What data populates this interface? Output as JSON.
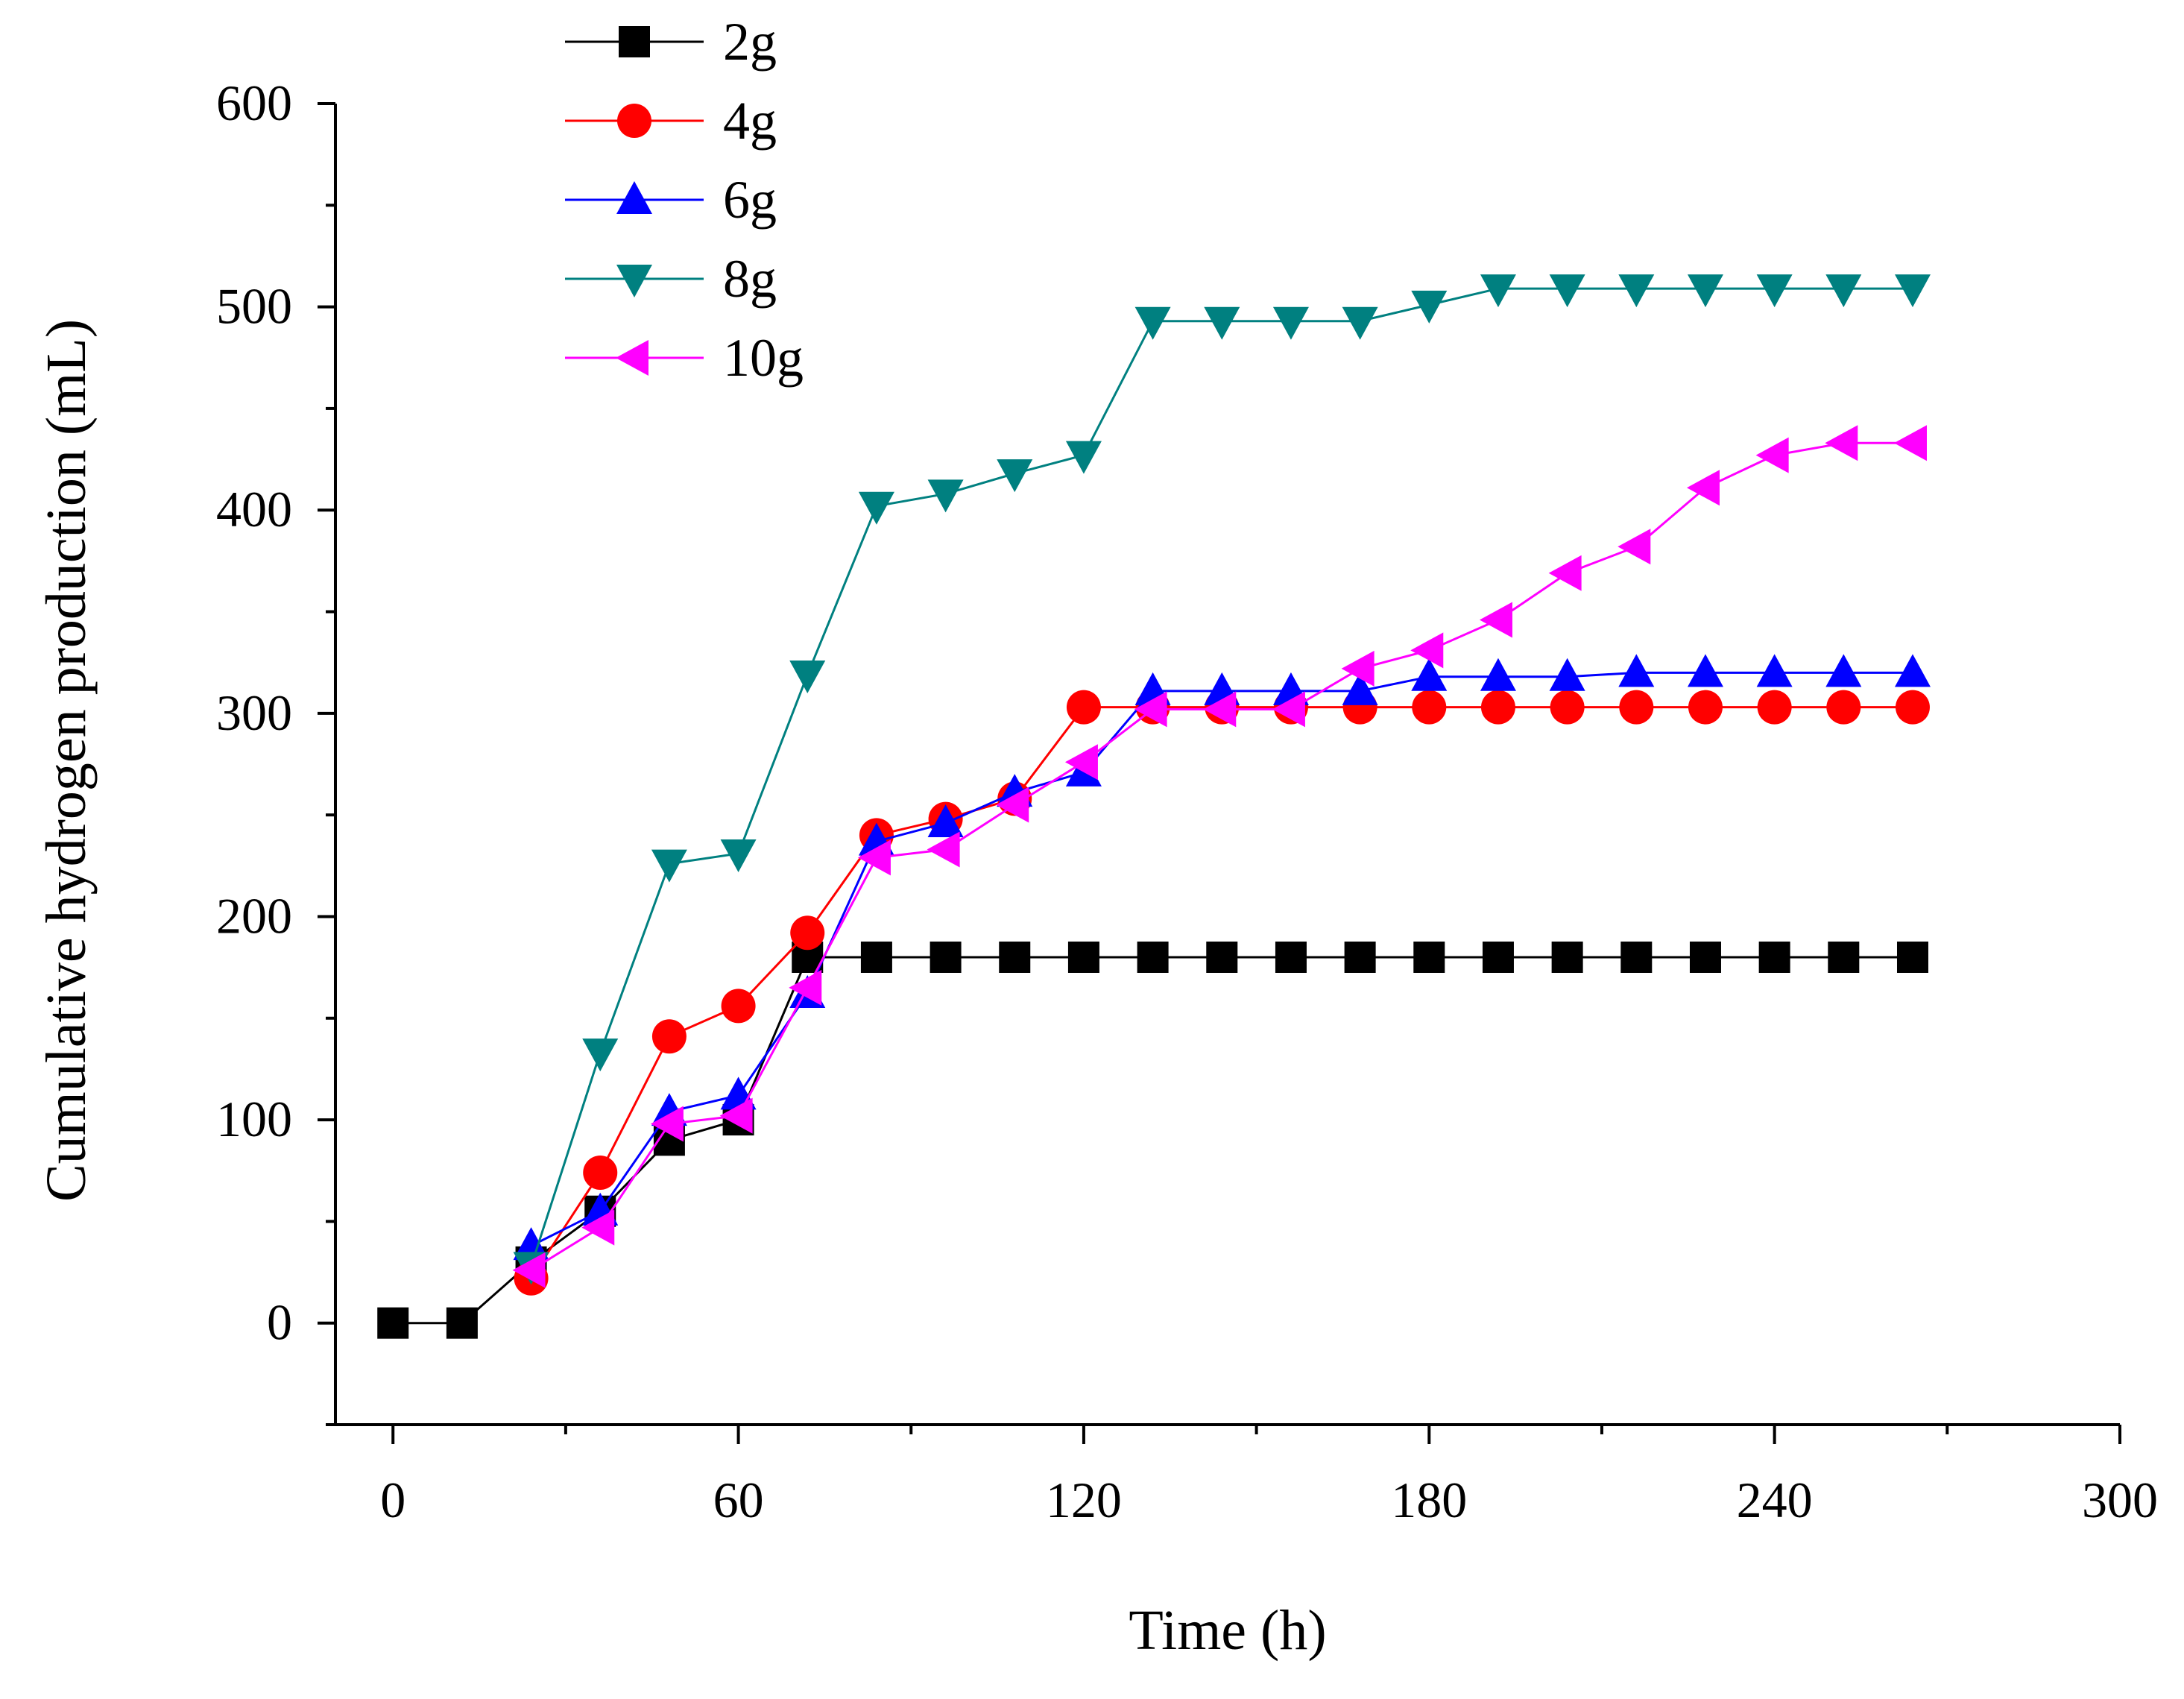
{
  "chart_data": {
    "type": "line",
    "title": "",
    "xlabel": "Time (h)",
    "ylabel": "Cumulative hydrogen production (mL)",
    "xlim": [
      -10,
      300
    ],
    "ylim": [
      -50,
      600
    ],
    "xticks": [
      0,
      60,
      120,
      180,
      240,
      300
    ],
    "xtick_labels": [
      "0",
      "60",
      "120",
      "180",
      "240",
      "300"
    ],
    "yticks": [
      0,
      100,
      200,
      300,
      400,
      500,
      600
    ],
    "ytick_labels": [
      "0",
      "100",
      "200",
      "300",
      "400",
      "500",
      "600"
    ],
    "grid": false,
    "legend_position": "top-left",
    "x": [
      0,
      12,
      24,
      36,
      48,
      60,
      72,
      84,
      96,
      108,
      120,
      132,
      144,
      156,
      168,
      180,
      192,
      204,
      216,
      228,
      240,
      252,
      264
    ],
    "series": [
      {
        "name": "2g",
        "color": "#000000",
        "marker": "square",
        "x": [
          0,
          12,
          24,
          36,
          48,
          60,
          72,
          84,
          96,
          108,
          120,
          132,
          144,
          156,
          168,
          180,
          192,
          204,
          216,
          228,
          240,
          252,
          264
        ],
        "values": [
          0,
          0,
          30,
          55,
          90,
          100,
          180,
          180,
          180,
          180,
          180,
          180,
          180,
          180,
          180,
          180,
          180,
          180,
          180,
          180,
          180,
          180,
          180
        ]
      },
      {
        "name": "4g",
        "color": "#ff0000",
        "marker": "circle",
        "x": [
          24,
          36,
          48,
          60,
          72,
          84,
          96,
          108,
          120,
          132,
          144,
          156,
          168,
          180,
          192,
          204,
          216,
          228,
          240,
          252,
          264
        ],
        "values": [
          22,
          74,
          141,
          156,
          192,
          240,
          248,
          258,
          303,
          303,
          303,
          303,
          303,
          303,
          303,
          303,
          303,
          303,
          303,
          303,
          303
        ]
      },
      {
        "name": "6g",
        "color": "#0000ff",
        "marker": "triangle-up",
        "x": [
          24,
          36,
          48,
          60,
          72,
          84,
          96,
          108,
          120,
          132,
          144,
          156,
          168,
          180,
          192,
          204,
          216,
          228,
          240,
          252,
          264
        ],
        "values": [
          38,
          55,
          104,
          112,
          162,
          237,
          246,
          261,
          271,
          311,
          311,
          311,
          311,
          318,
          318,
          318,
          320,
          320,
          320,
          320,
          320
        ]
      },
      {
        "name": "8g",
        "color": "#008080",
        "marker": "triangle-down",
        "x": [
          24,
          36,
          48,
          60,
          72,
          84,
          96,
          108,
          120,
          132,
          144,
          156,
          168,
          180,
          192,
          204,
          216,
          228,
          240,
          252,
          264
        ],
        "values": [
          28,
          133,
          226,
          231,
          319,
          402,
          408,
          418,
          427,
          493,
          493,
          493,
          493,
          501,
          509,
          509,
          509,
          509,
          509,
          509,
          509
        ]
      },
      {
        "name": "10g",
        "color": "#ff00ff",
        "marker": "triangle-left",
        "x": [
          24,
          36,
          48,
          60,
          72,
          84,
          96,
          108,
          120,
          132,
          144,
          156,
          168,
          180,
          192,
          204,
          216,
          228,
          240,
          252,
          264
        ],
        "values": [
          26,
          47,
          98,
          102,
          165,
          229,
          233,
          255,
          276,
          302,
          302,
          302,
          322,
          331,
          346,
          369,
          382,
          411,
          427,
          433,
          433
        ]
      }
    ]
  }
}
